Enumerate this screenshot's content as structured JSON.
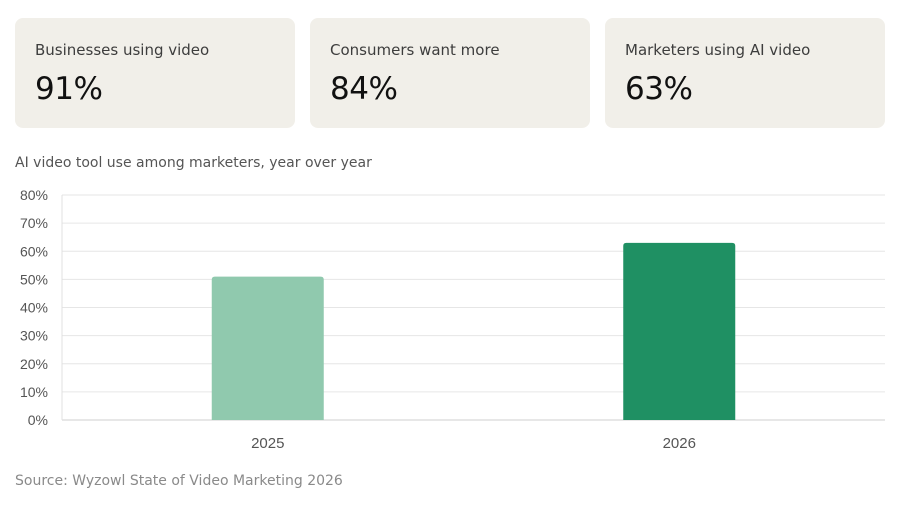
{
  "stats": [
    {
      "label": "Businesses using video",
      "value": "91%"
    },
    {
      "label": "Consumers want more",
      "value": "84%"
    },
    {
      "label": "Marketers using AI video",
      "value": "63%"
    }
  ],
  "chart_title": "AI video tool use among marketers, year over year",
  "chart_data": {
    "type": "bar",
    "categories": [
      "2025",
      "2026"
    ],
    "values": [
      51,
      63
    ],
    "colors": [
      "#90c9ae",
      "#1f9063"
    ],
    "ylim": [
      0,
      80
    ],
    "yticks": [
      0,
      10,
      20,
      30,
      40,
      50,
      60,
      70,
      80
    ],
    "ytick_suffix": "%",
    "grid": true,
    "legend": "none"
  },
  "source": "Source: Wyzowl State of Video Marketing 2026"
}
